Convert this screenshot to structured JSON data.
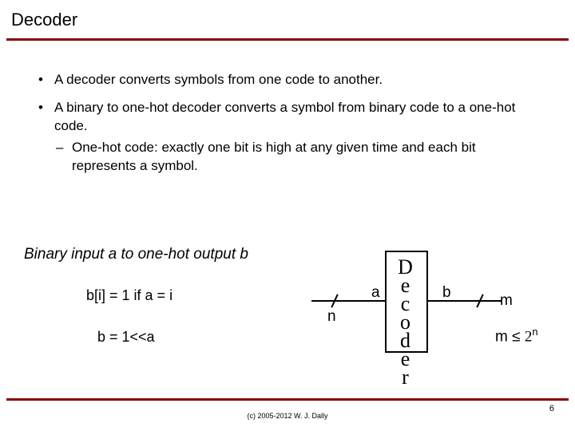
{
  "title": "Decoder",
  "bullets": {
    "b1": "A decoder converts symbols from one code to another.",
    "b2": "A binary to one-hot decoder converts a symbol from binary code to a one-hot code.",
    "b2_sub": "One-hot code: exactly one bit is high at any given time and each bit represents a symbol."
  },
  "lower": {
    "heading": "Binary input a to one-hot output b",
    "eq1": "b[i] = 1 if a = i",
    "eq2": "b = 1<<a"
  },
  "diagram": {
    "box_label": "Decoder",
    "input_label": "a",
    "output_label": "b",
    "input_width": "n",
    "output_width": "m",
    "constraint_lhs": "m ≤ ",
    "constraint_base": "2",
    "constraint_exp": "n",
    "box_border_color": "#000000",
    "wire_color": "#000000"
  },
  "colors": {
    "accent_rule": "#8b0000",
    "background": "#ffffff",
    "text": "#000000"
  },
  "footer": {
    "copyright": "(c) 2005-2012 W. J. Dally",
    "page": "6"
  }
}
